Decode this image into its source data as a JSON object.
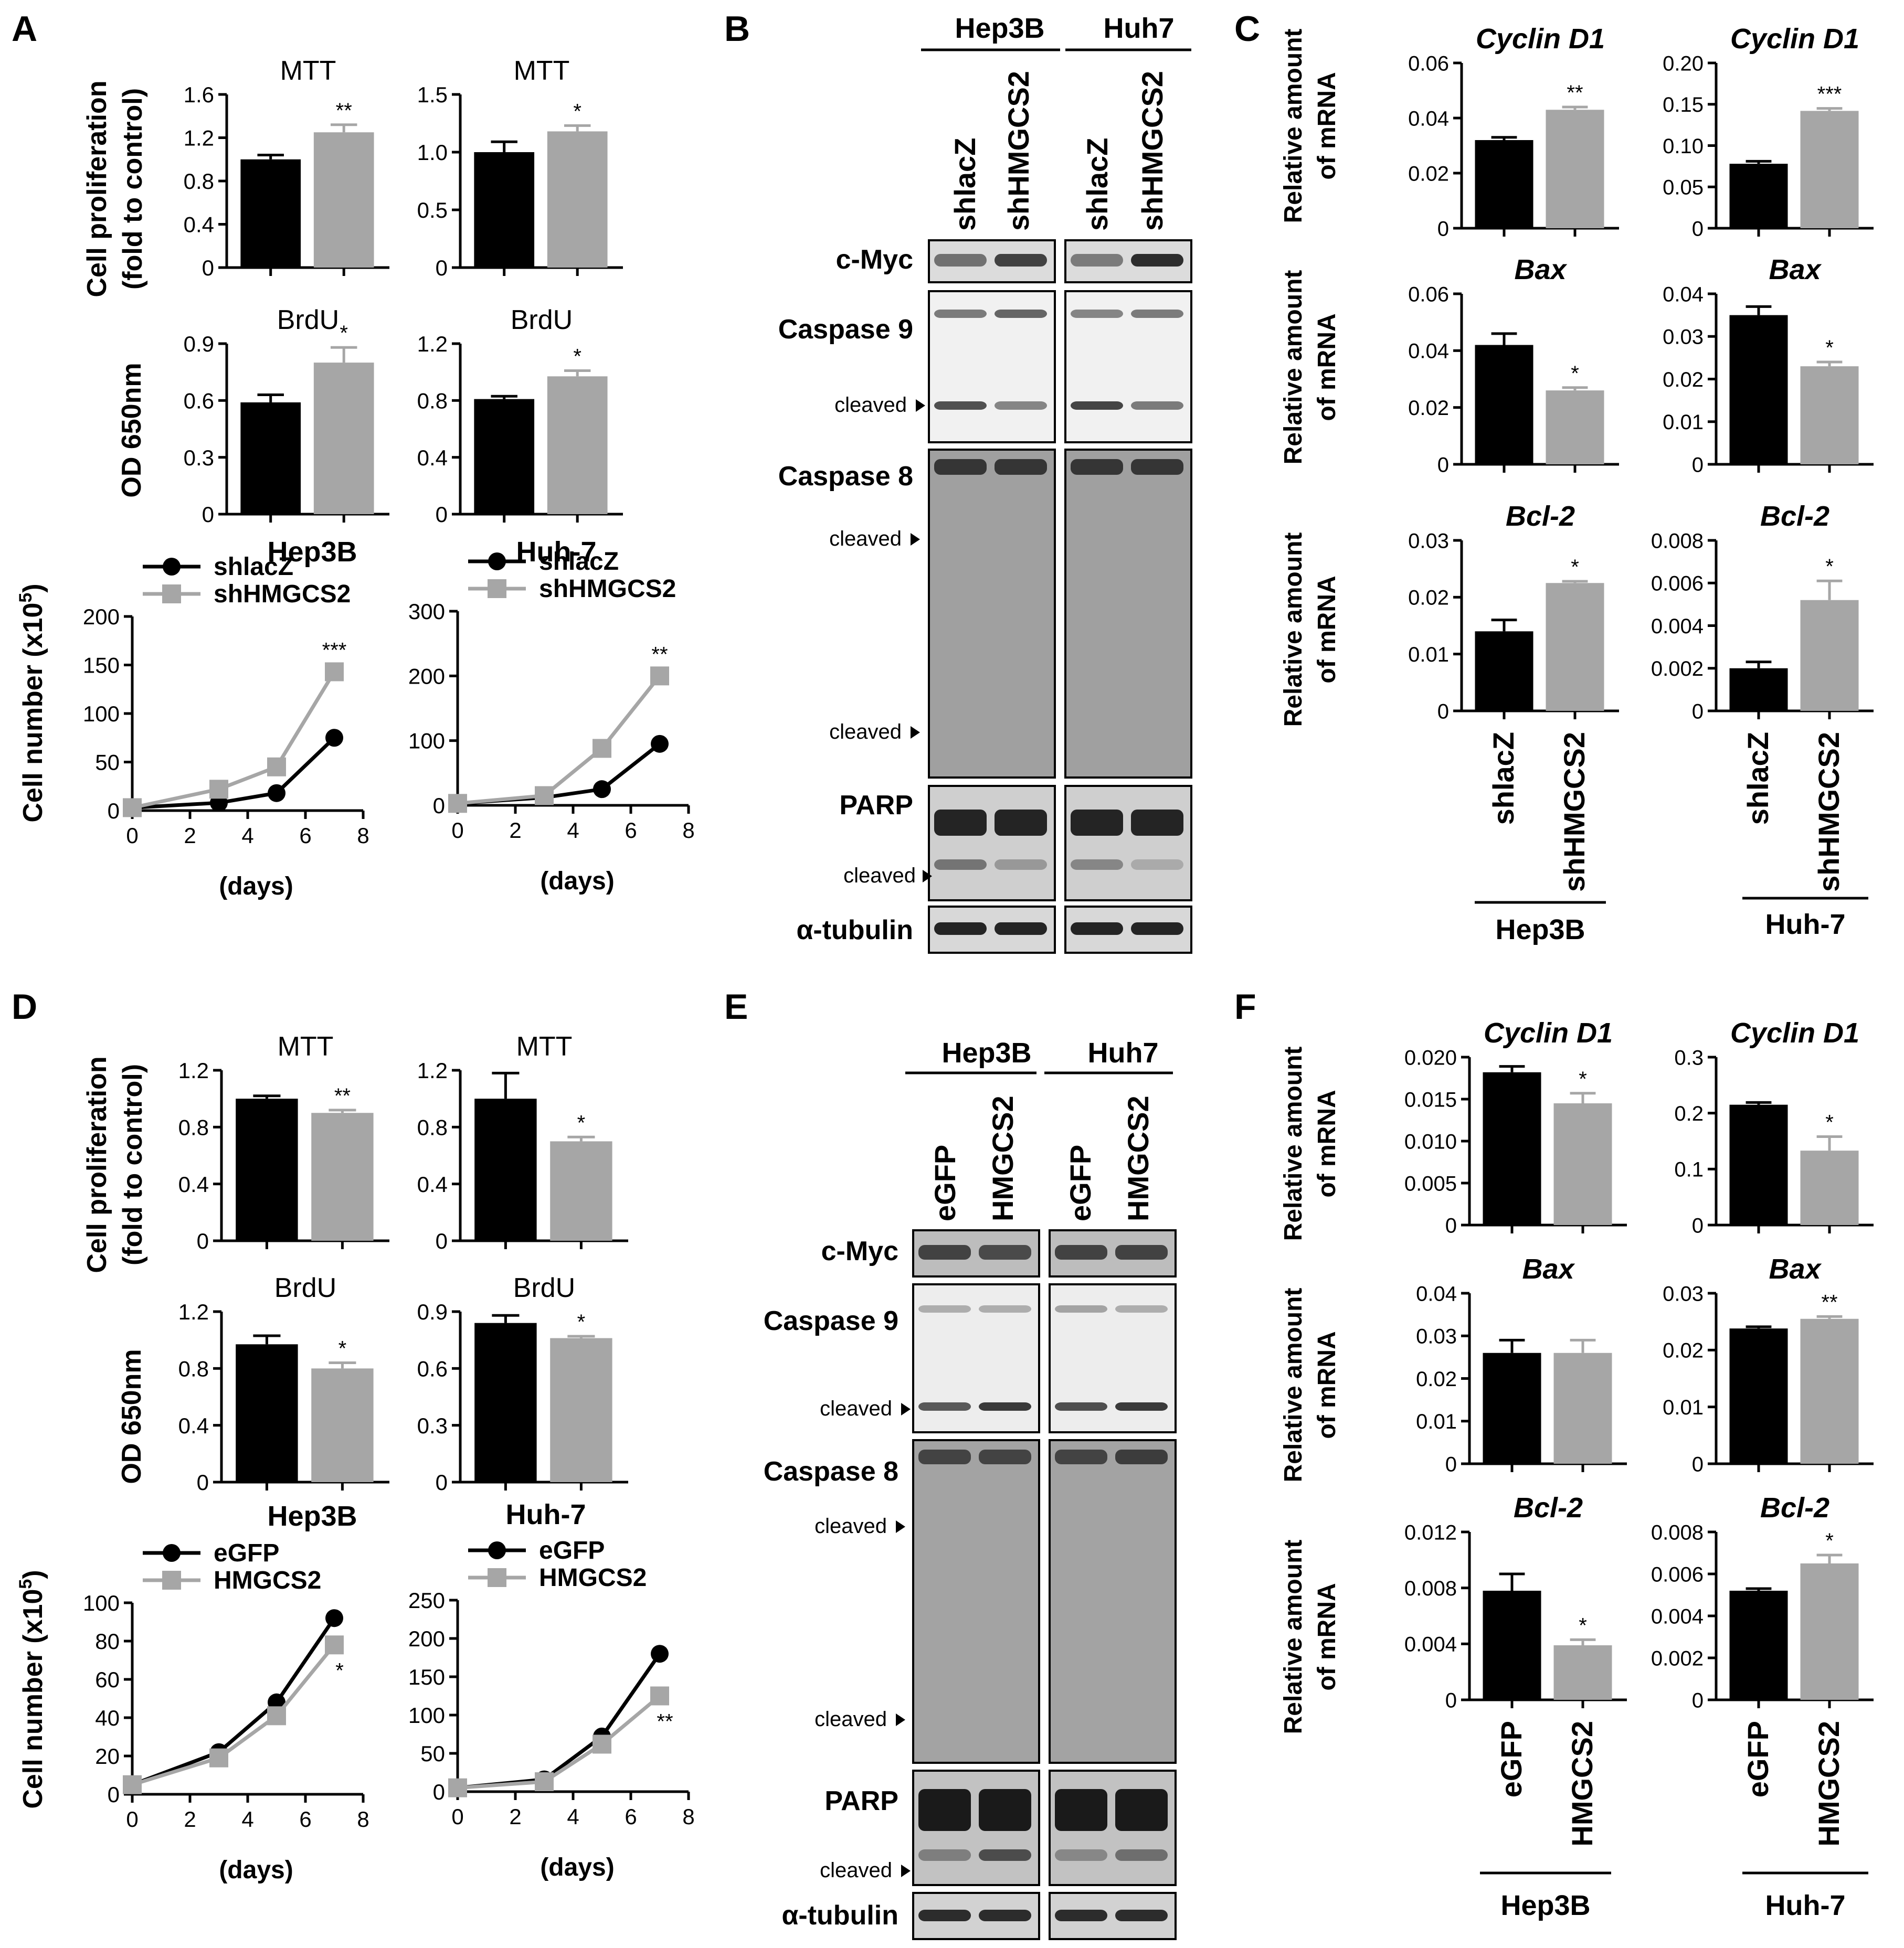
{
  "panels": {
    "A": "A",
    "B": "B",
    "C": "C",
    "D": "D",
    "E": "E",
    "F": "F"
  },
  "colors": {
    "control": "#000000",
    "treated": "#a6a6a6",
    "blot_bg": "#e6e6e6"
  },
  "axis_labels": {
    "cell_prolif_1": "Cell proliferation",
    "cell_prolif_2": "(fold to control)",
    "od": "OD 650nm",
    "cell_number": "Cell number (x10",
    "cell_number_exp": "5",
    "cell_number_close": ")",
    "days": "(days)",
    "rel_mrna_1": "Relative amount",
    "rel_mrna_2": "of mRNA"
  },
  "cell_lines": {
    "hep3b": "Hep3B",
    "huh7": "Huh-7",
    "huh7_blot": "Huh7"
  },
  "blots_B": {
    "lanes": [
      "shlacZ",
      "shHMGCS2"
    ],
    "labels": {
      "cmyc": "c-Myc",
      "casp9": "Caspase 9",
      "casp8": "Caspase 8",
      "parp": "PARP",
      "tubulin": "α-tubulin",
      "cleaved": "cleaved"
    }
  },
  "blots_E": {
    "lanes": [
      "eGFP",
      "HMGCS2"
    ],
    "labels": {
      "cmyc": "c-Myc",
      "casp9": "Caspase 9",
      "casp8": "Caspase 8",
      "parp": "PARP",
      "tubulin": "α-tubulin",
      "cleaved": "cleaved"
    }
  },
  "chart_data": [
    {
      "id": "A_mtt_hep3b",
      "type": "bar",
      "title": "MTT",
      "categories": [
        "shlacZ",
        "shHMGCS2"
      ],
      "values": [
        1.0,
        1.25
      ],
      "errors": [
        0.04,
        0.07
      ],
      "ylim": [
        0,
        1.6
      ],
      "yticks": [
        "0",
        "0.4",
        "0.8",
        "1.2",
        "1.6"
      ],
      "significance": "**"
    },
    {
      "id": "A_mtt_huh7",
      "type": "bar",
      "title": "MTT",
      "categories": [
        "shlacZ",
        "shHMGCS2"
      ],
      "values": [
        1.0,
        1.18
      ],
      "errors": [
        0.09,
        0.05
      ],
      "ylim": [
        0,
        1.5
      ],
      "yticks": [
        "0",
        "0.5",
        "1.0",
        "1.5"
      ],
      "significance": "*"
    },
    {
      "id": "A_brdu_hep3b",
      "type": "bar",
      "title": "BrdU",
      "categories": [
        "shlacZ",
        "shHMGCS2"
      ],
      "values": [
        0.59,
        0.8
      ],
      "errors": [
        0.04,
        0.08
      ],
      "ylim": [
        0,
        0.9
      ],
      "yticks": [
        "0",
        "0.3",
        "0.6",
        "0.9"
      ],
      "significance": "*"
    },
    {
      "id": "A_brdu_huh7",
      "type": "bar",
      "title": "BrdU",
      "categories": [
        "shlacZ",
        "shHMGCS2"
      ],
      "values": [
        0.81,
        0.97
      ],
      "errors": [
        0.02,
        0.04
      ],
      "ylim": [
        0,
        1.2
      ],
      "yticks": [
        "0",
        "0.4",
        "0.8",
        "1.2"
      ],
      "significance": "*"
    },
    {
      "id": "A_growth_hep3b",
      "type": "line",
      "x": [
        0,
        3,
        5,
        7
      ],
      "xticks": [
        "0",
        "2",
        "4",
        "6",
        "8"
      ],
      "xlim": [
        0,
        8
      ],
      "ylim": [
        0,
        200
      ],
      "yticks": [
        "0",
        "50",
        "100",
        "150",
        "200"
      ],
      "series": [
        {
          "name": "shlacZ",
          "values": [
            3,
            8,
            18,
            75
          ]
        },
        {
          "name": "shHMGCS2",
          "values": [
            3,
            22,
            45,
            143
          ]
        }
      ],
      "significance": "***"
    },
    {
      "id": "A_growth_huh7",
      "type": "line",
      "x": [
        0,
        3,
        5,
        7
      ],
      "xticks": [
        "0",
        "2",
        "4",
        "6",
        "8"
      ],
      "xlim": [
        0,
        8
      ],
      "ylim": [
        0,
        300
      ],
      "yticks": [
        "0",
        "100",
        "200",
        "300"
      ],
      "series": [
        {
          "name": "shlacZ",
          "values": [
            3,
            12,
            25,
            95
          ]
        },
        {
          "name": "shHMGCS2",
          "values": [
            3,
            15,
            88,
            200
          ]
        }
      ],
      "significance": "**"
    },
    {
      "id": "C_cyclin_hep3b",
      "type": "bar",
      "title": "Cyclin D1",
      "categories": [
        "shlacZ",
        "shHMGCS2"
      ],
      "values": [
        0.032,
        0.043
      ],
      "errors": [
        0.001,
        0.001
      ],
      "ylim": [
        0,
        0.06
      ],
      "yticks": [
        "0",
        "0.02",
        "0.04",
        "0.06"
      ],
      "significance": "**"
    },
    {
      "id": "C_cyclin_huh7",
      "type": "bar",
      "title": "Cyclin D1",
      "categories": [
        "shlacZ",
        "shHMGCS2"
      ],
      "values": [
        0.078,
        0.142
      ],
      "errors": [
        0.003,
        0.003
      ],
      "ylim": [
        0,
        0.2
      ],
      "yticks": [
        "0",
        "0.05",
        "0.10",
        "0.15",
        "0.20"
      ],
      "significance": "***"
    },
    {
      "id": "C_bax_hep3b",
      "type": "bar",
      "title": "Bax",
      "categories": [
        "shlacZ",
        "shHMGCS2"
      ],
      "values": [
        0.042,
        0.026
      ],
      "errors": [
        0.004,
        0.001
      ],
      "ylim": [
        0,
        0.06
      ],
      "yticks": [
        "0",
        "0.02",
        "0.04",
        "0.06"
      ],
      "significance": "*"
    },
    {
      "id": "C_bax_huh7",
      "type": "bar",
      "title": "Bax",
      "categories": [
        "shlacZ",
        "shHMGCS2"
      ],
      "values": [
        0.035,
        0.023
      ],
      "errors": [
        0.002,
        0.001
      ],
      "ylim": [
        0,
        0.04
      ],
      "yticks": [
        "0",
        "0.01",
        "0.02",
        "0.03",
        "0.04"
      ],
      "significance": "*"
    },
    {
      "id": "C_bcl2_hep3b",
      "type": "bar",
      "title": "Bcl-2",
      "categories": [
        "shlacZ",
        "shHMGCS2"
      ],
      "values": [
        0.014,
        0.0225
      ],
      "errors": [
        0.002,
        0.0003
      ],
      "ylim": [
        0,
        0.03
      ],
      "yticks": [
        "0",
        "0.01",
        "0.02",
        "0.03"
      ],
      "significance": "*"
    },
    {
      "id": "C_bcl2_huh7",
      "type": "bar",
      "title": "Bcl-2",
      "categories": [
        "shlacZ",
        "shHMGCS2"
      ],
      "values": [
        0.002,
        0.0052
      ],
      "errors": [
        0.0003,
        0.0009
      ],
      "ylim": [
        0,
        0.008
      ],
      "yticks": [
        "0",
        "0.002",
        "0.004",
        "0.006",
        "0.008"
      ],
      "significance": "*"
    },
    {
      "id": "D_mtt_hep3b",
      "type": "bar",
      "title": "MTT",
      "categories": [
        "eGFP",
        "HMGCS2"
      ],
      "values": [
        1.0,
        0.9
      ],
      "errors": [
        0.02,
        0.02
      ],
      "ylim": [
        0,
        1.2
      ],
      "yticks": [
        "0",
        "0.4",
        "0.8",
        "1.2"
      ],
      "significance": "**"
    },
    {
      "id": "D_mtt_huh7",
      "type": "bar",
      "title": "MTT",
      "categories": [
        "eGFP",
        "HMGCS2"
      ],
      "values": [
        1.0,
        0.7
      ],
      "errors": [
        0.18,
        0.03
      ],
      "ylim": [
        0,
        1.2
      ],
      "yticks": [
        "0",
        "0.4",
        "0.8",
        "1.2"
      ],
      "significance": "*"
    },
    {
      "id": "D_brdu_hep3b",
      "type": "bar",
      "title": "BrdU",
      "categories": [
        "eGFP",
        "HMGCS2"
      ],
      "values": [
        0.97,
        0.8
      ],
      "errors": [
        0.06,
        0.04
      ],
      "ylim": [
        0,
        1.2
      ],
      "yticks": [
        "0",
        "0.4",
        "0.8",
        "1.2"
      ],
      "significance": "*"
    },
    {
      "id": "D_brdu_huh7",
      "type": "bar",
      "title": "BrdU",
      "categories": [
        "eGFP",
        "HMGCS2"
      ],
      "values": [
        0.84,
        0.76
      ],
      "errors": [
        0.04,
        0.01
      ],
      "ylim": [
        0,
        0.9
      ],
      "yticks": [
        "0",
        "0.3",
        "0.6",
        "0.9"
      ],
      "significance": "*"
    },
    {
      "id": "D_growth_hep3b",
      "type": "line",
      "x": [
        0,
        3,
        5,
        7
      ],
      "xticks": [
        "0",
        "2",
        "4",
        "6",
        "8"
      ],
      "xlim": [
        0,
        8
      ],
      "ylim": [
        0,
        100
      ],
      "yticks": [
        "0",
        "20",
        "40",
        "60",
        "80",
        "100"
      ],
      "series": [
        {
          "name": "eGFP",
          "values": [
            5,
            22,
            48,
            92
          ]
        },
        {
          "name": "HMGCS2",
          "values": [
            5,
            19,
            41,
            78
          ]
        }
      ],
      "significance": "*"
    },
    {
      "id": "D_growth_huh7",
      "type": "line",
      "x": [
        0,
        3,
        5,
        7
      ],
      "xticks": [
        "0",
        "2",
        "4",
        "6",
        "8"
      ],
      "xlim": [
        0,
        8
      ],
      "ylim": [
        0,
        250
      ],
      "yticks": [
        "0",
        "50",
        "100",
        "150",
        "200",
        "250"
      ],
      "series": [
        {
          "name": "eGFP",
          "values": [
            5,
            16,
            72,
            180
          ]
        },
        {
          "name": "HMGCS2",
          "values": [
            5,
            13,
            62,
            125
          ]
        }
      ],
      "significance": "**"
    },
    {
      "id": "F_cyclin_hep3b",
      "type": "bar",
      "title": "Cyclin D1",
      "categories": [
        "eGFP",
        "HMGCS2"
      ],
      "values": [
        0.0182,
        0.0145
      ],
      "errors": [
        0.0007,
        0.0012
      ],
      "ylim": [
        0,
        0.02
      ],
      "yticks": [
        "0",
        "0.005",
        "0.010",
        "0.015",
        "0.020"
      ],
      "significance": "*"
    },
    {
      "id": "F_cyclin_huh7",
      "type": "bar",
      "title": "Cyclin D1",
      "categories": [
        "eGFP",
        "HMGCS2"
      ],
      "values": [
        0.215,
        0.133
      ],
      "errors": [
        0.004,
        0.025
      ],
      "ylim": [
        0,
        0.3
      ],
      "yticks": [
        "0",
        "0.1",
        "0.2",
        "0.3"
      ],
      "significance": "*"
    },
    {
      "id": "F_bax_hep3b",
      "type": "bar",
      "title": "Bax",
      "categories": [
        "eGFP",
        "HMGCS2"
      ],
      "values": [
        0.026,
        0.026
      ],
      "errors": [
        0.003,
        0.003
      ],
      "ylim": [
        0,
        0.04
      ],
      "yticks": [
        "0",
        "0.01",
        "0.02",
        "0.03",
        "0.04"
      ],
      "significance": ""
    },
    {
      "id": "F_bax_huh7",
      "type": "bar",
      "title": "Bax",
      "categories": [
        "eGFP",
        "HMGCS2"
      ],
      "values": [
        0.0238,
        0.0255
      ],
      "errors": [
        0.0003,
        0.0004
      ],
      "ylim": [
        0,
        0.03
      ],
      "yticks": [
        "0",
        "0.01",
        "0.02",
        "0.03"
      ],
      "significance": "**"
    },
    {
      "id": "F_bcl2_hep3b",
      "type": "bar",
      "title": "Bcl-2",
      "categories": [
        "eGFP",
        "HMGCS2"
      ],
      "values": [
        0.0078,
        0.0039
      ],
      "errors": [
        0.0012,
        0.0004
      ],
      "ylim": [
        0,
        0.012
      ],
      "yticks": [
        "0",
        "0.004",
        "0.008",
        "0.012"
      ],
      "significance": "*"
    },
    {
      "id": "F_bcl2_huh7",
      "type": "bar",
      "title": "Bcl-2",
      "categories": [
        "eGFP",
        "HMGCS2"
      ],
      "values": [
        0.0052,
        0.0065
      ],
      "errors": [
        0.0001,
        0.0004
      ],
      "ylim": [
        0,
        0.008
      ],
      "yticks": [
        "0",
        "0.002",
        "0.004",
        "0.006",
        "0.008"
      ],
      "significance": "*"
    }
  ]
}
